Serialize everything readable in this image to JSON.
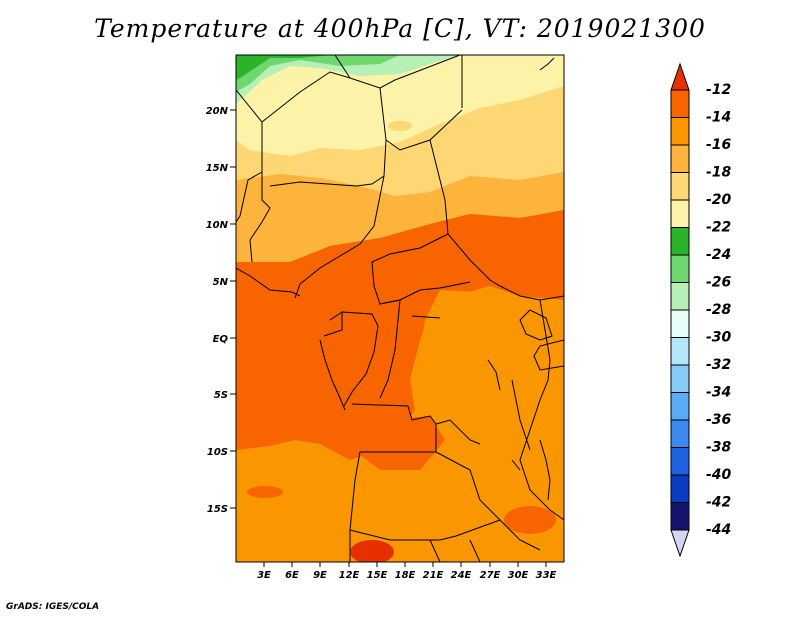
{
  "title": "Temperature at 400hPa [C], VT: 2019021300",
  "credit": "GrADS: IGES/COLA",
  "map": {
    "lat_labels": [
      "20N",
      "15N",
      "10N",
      "5N",
      "EQ",
      "5S",
      "10S",
      "15S"
    ],
    "lon_labels": [
      "3E",
      "6E",
      "9E",
      "12E",
      "15E",
      "18E",
      "21E",
      "24E",
      "27E",
      "30E",
      "33E"
    ]
  },
  "colorbar": {
    "top_label": "-12",
    "labels": [
      "-14",
      "-16",
      "-18",
      "-20",
      "-22",
      "-24",
      "-26",
      "-28",
      "-30",
      "-32",
      "-34",
      "-36",
      "-38",
      "-40",
      "-42"
    ],
    "bottom_label": "-44",
    "colors": [
      "#e63000",
      "#f86400",
      "#fa9600",
      "#fcb43c",
      "#fcd774",
      "#fcf3a8",
      "#2ab42a",
      "#6ed86e",
      "#b6f0b6",
      "#e6fcf6",
      "#b4e6fa",
      "#88caf8",
      "#5aaaf4",
      "#3a8af0",
      "#1e62e0",
      "#0a3cc0",
      "#14146e",
      "#d6d6f4"
    ]
  },
  "legend_colors": {
    "c_m12": "#e63000",
    "c_m14": "#f86400",
    "c_m16": "#fa9600",
    "c_m18": "#fcb43c",
    "c_m20": "#fcd774",
    "c_m22": "#fcf3a8",
    "c_m24": "#2ab42a",
    "c_m26": "#6ed86e",
    "c_m28": "#b6f0b6"
  }
}
